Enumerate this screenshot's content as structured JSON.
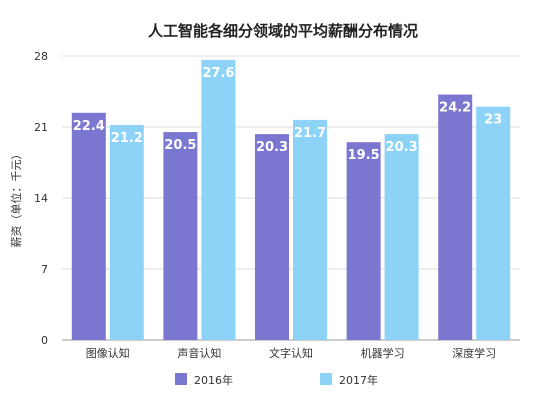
{
  "chart_data": {
    "type": "bar",
    "title": "人工智能各细分领域的平均薪酬分布情况",
    "xlabel": "",
    "ylabel": "薪资（单位：千元）",
    "ylim": [
      0,
      28
    ],
    "yticks": [
      0,
      7,
      14,
      21,
      28
    ],
    "grid": true,
    "legend_position": "bottom",
    "categories": [
      "图像认知",
      "声音认知",
      "文字认知",
      "机器学习",
      "深度学习"
    ],
    "series": [
      {
        "name": "2016年",
        "color": "#7b76cf",
        "values": [
          22.4,
          20.5,
          20.3,
          19.5,
          24.2
        ]
      },
      {
        "name": "2017年",
        "color": "#8dd2f7",
        "values": [
          21.2,
          27.6,
          21.7,
          20.3,
          23
        ]
      }
    ]
  }
}
